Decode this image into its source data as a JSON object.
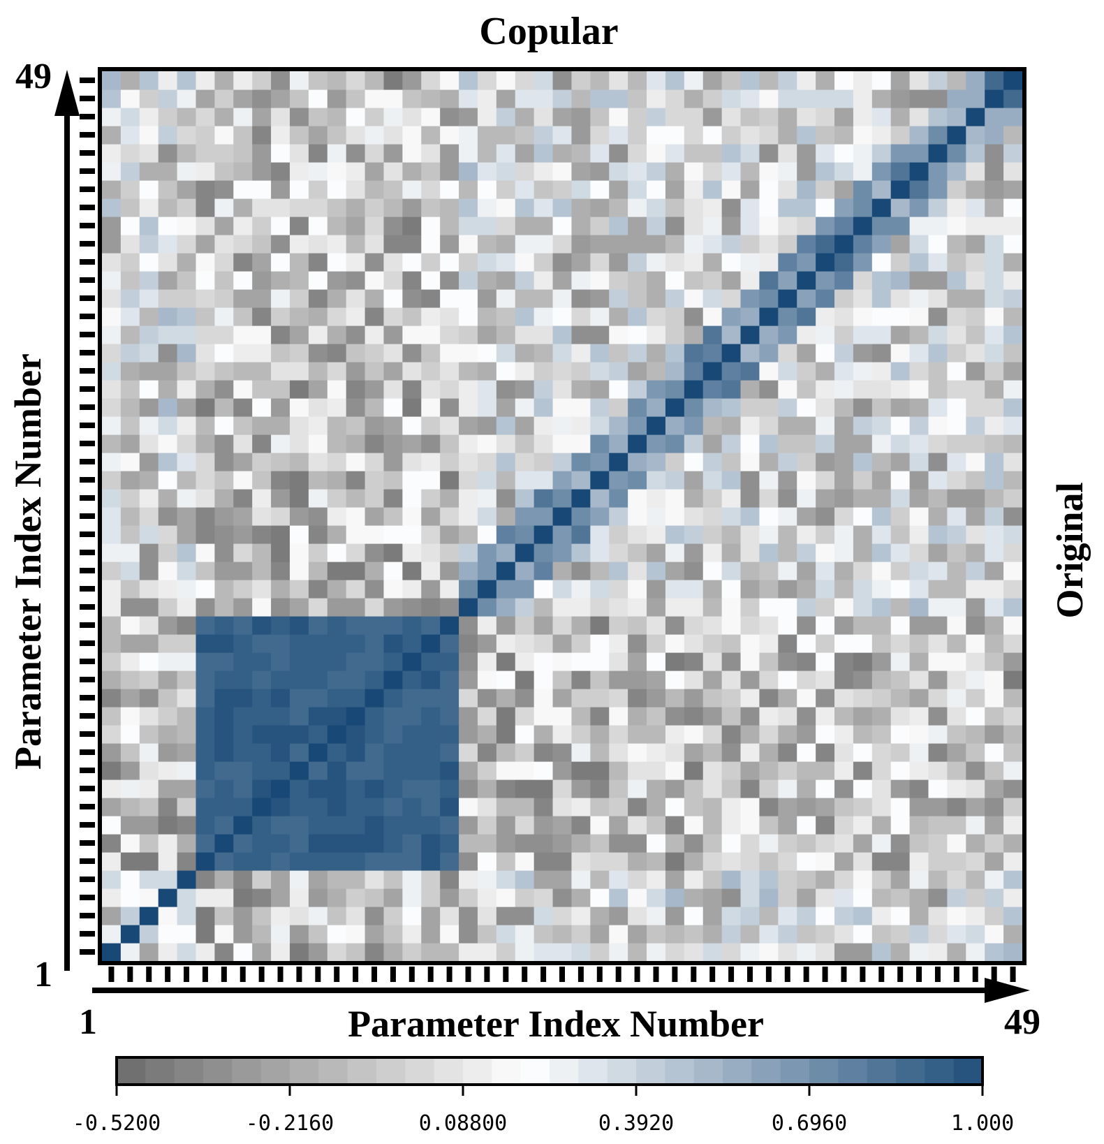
{
  "chart_data": {
    "type": "heatmap",
    "title": "Copular",
    "right_label": "Original",
    "xlabel": "Parameter Index Number",
    "ylabel": "Parameter Index Number",
    "x_range": [
      1,
      49
    ],
    "y_range": [
      1,
      49
    ],
    "x_start_label": "1",
    "x_end_label": "49",
    "y_start_label": "1",
    "y_end_label": "49",
    "n": 49,
    "upper_triangle": "Copular",
    "lower_triangle": "Original",
    "colorbar": {
      "min": -0.52,
      "max": 1.0,
      "ticks": [
        -0.52,
        -0.216,
        0.088,
        0.392,
        0.696,
        1.0
      ],
      "tick_labels": [
        "-0.5200",
        "-0.2160",
        "0.08800",
        "0.3920",
        "0.6960",
        "1.000"
      ],
      "colors": [
        "#6b6b6b",
        "#ffffff",
        "#1f4e7a"
      ],
      "levels": 30
    },
    "diagonal": 1.0,
    "strong_block": {
      "rows_start": 6,
      "rows_end": 19,
      "cols_start": 6,
      "cols_end": 19,
      "value": 0.97
    }
  }
}
